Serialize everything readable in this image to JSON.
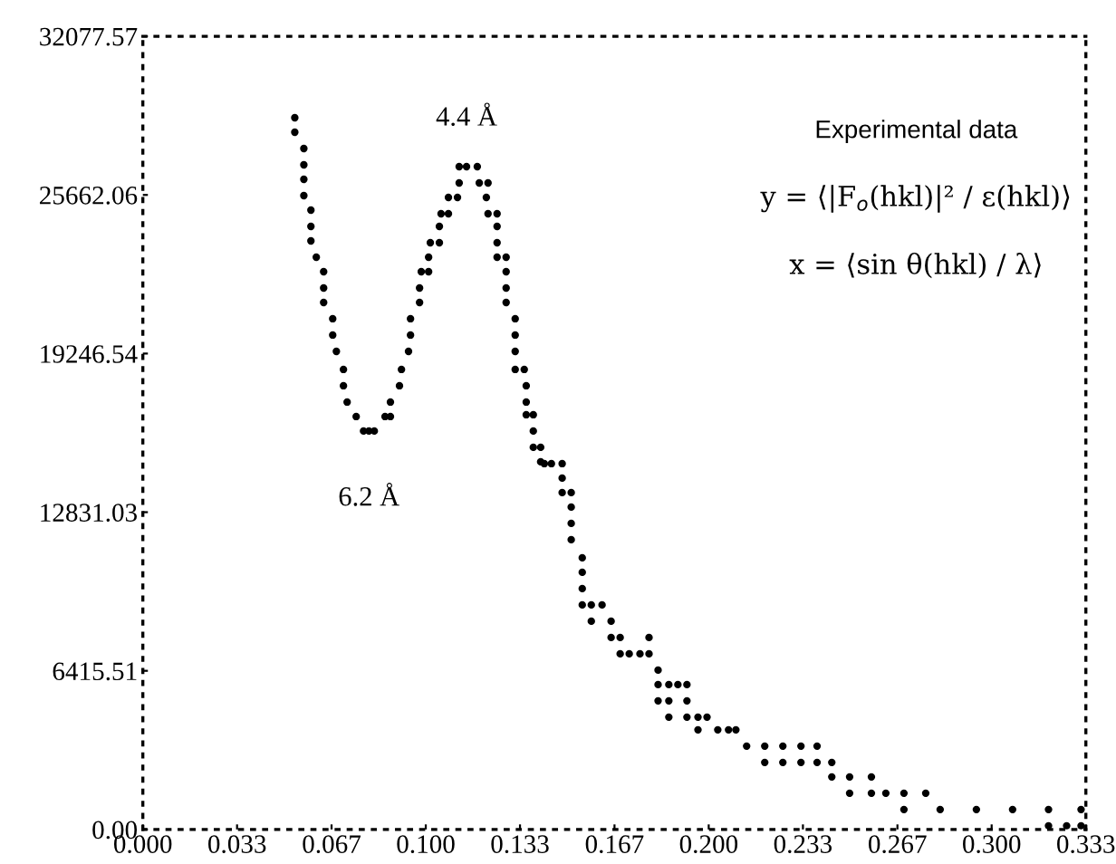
{
  "chart_data": {
    "type": "scatter",
    "marker": "circle",
    "grid": false,
    "legend": false,
    "xlim": [
      0,
      0.3333
    ],
    "ylim": [
      0,
      32077.57
    ],
    "xticks": [
      {
        "value": 0,
        "label": "0.000"
      },
      {
        "value": 0.0333,
        "label": "0.033"
      },
      {
        "value": 0.0667,
        "label": "0.067"
      },
      {
        "value": 0.1,
        "label": "0.100"
      },
      {
        "value": 0.1333,
        "label": "0.133"
      },
      {
        "value": 0.1667,
        "label": "0.167"
      },
      {
        "value": 0.2,
        "label": "0.200"
      },
      {
        "value": 0.2333,
        "label": "0.233"
      },
      {
        "value": 0.2667,
        "label": "0.267"
      },
      {
        "value": 0.3,
        "label": "0.300"
      },
      {
        "value": 0.3333,
        "label": "0.333"
      }
    ],
    "yticks": [
      {
        "value": 0,
        "label": "0.00"
      },
      6415.51,
      12831.03,
      19246.54,
      25662.06,
      32077.57
    ],
    "annotations": [
      {
        "text": "4.4 Å",
        "x": 0.1144,
        "y": 26806
      },
      {
        "text": "6.2 Å",
        "x": 0.0799,
        "y": 16113
      },
      "Experimental data",
      "y = ⟨|F$_{o}$(hkl)|² / ε(hkl)⟩",
      "x = ⟨sin θ(hkl) / λ⟩"
    ],
    "series": [
      {
        "color": "#000000",
        "x": [
          0.0537,
          0.0537,
          0.0569,
          0.0569,
          0.0569,
          0.0569,
          0.0594,
          0.0594,
          0.0594,
          0.0613,
          0.0639,
          0.0639,
          0.0639,
          0.0671,
          0.0671,
          0.0684,
          0.0709,
          0.0709,
          0.0722,
          0.0754,
          0.078,
          0.0799,
          0.0818,
          0.0856,
          0.0875,
          0.0875,
          0.0907,
          0.0914,
          0.0939,
          0.0946,
          0.0946,
          0.0978,
          0.0978,
          0.0984,
          0.101,
          0.101,
          0.1016,
          0.1048,
          0.1048,
          0.1054,
          0.108,
          0.108,
          0.1112,
          0.1118,
          0.1118,
          0.1144,
          0.1182,
          0.1189,
          0.122,
          0.1214,
          0.122,
          0.1252,
          0.1252,
          0.1252,
          0.1252,
          0.1284,
          0.1284,
          0.1284,
          0.1284,
          0.1316,
          0.1316,
          0.1316,
          0.1316,
          0.1348,
          0.1355,
          0.1355,
          0.1355,
          0.138,
          0.138,
          0.138,
          0.1406,
          0.1406,
          0.1419,
          0.1444,
          0.1482,
          0.1482,
          0.1482,
          0.1514,
          0.1514,
          0.1514,
          0.1514,
          0.1553,
          0.1553,
          0.1553,
          0.1553,
          0.1585,
          0.1623,
          0.1585,
          0.1655,
          0.1655,
          0.1687,
          0.1789,
          0.1687,
          0.1719,
          0.1757,
          0.1789,
          0.1821,
          0.1821,
          0.1859,
          0.1891,
          0.1923,
          0.1821,
          0.1859,
          0.1923,
          0.1859,
          0.1923,
          0.1962,
          0.1994,
          0.1962,
          0.2032,
          0.207,
          0.2096,
          0.2134,
          0.2198,
          0.2262,
          0.2326,
          0.2383,
          0.2198,
          0.2262,
          0.2326,
          0.2383,
          0.2435,
          0.2435,
          0.2498,
          0.2575,
          0.2498,
          0.2575,
          0.2626,
          0.269,
          0.2767,
          0.269,
          0.2818,
          0.2946,
          0.3074,
          0.3201,
          0.3316,
          0.3201,
          0.3265,
          0.3316
        ],
        "values": [
          28783,
          28197,
          27538,
          26879,
          26293,
          25634,
          25048,
          24389,
          23803,
          23144,
          22558,
          21899,
          21313,
          20654,
          19995,
          19335,
          18603,
          17944,
          17285,
          16699,
          16113,
          16113,
          16113,
          16699,
          16699,
          17285,
          17944,
          18603,
          19335,
          19995,
          20654,
          21313,
          21899,
          22558,
          22558,
          23144,
          23730,
          23730,
          24389,
          24902,
          24902,
          25561,
          25561,
          26147,
          26806,
          26806,
          26806,
          26147,
          26147,
          25561,
          24902,
          24902,
          24389,
          23730,
          23144,
          23144,
          22558,
          21899,
          21313,
          20654,
          19995,
          19335,
          18603,
          18603,
          17944,
          17285,
          16772,
          16772,
          16113,
          15454,
          15454,
          14868,
          14794,
          14794,
          14794,
          14209,
          13623,
          13623,
          13037,
          12378,
          11718,
          10986,
          10400,
          9741,
          9082,
          9082,
          9082,
          8423,
          8423,
          7763,
          7763,
          7763,
          7104,
          7104,
          7104,
          7104,
          6445,
          5859,
          5859,
          5859,
          5859,
          5200,
          5200,
          5200,
          4541,
          4541,
          4541,
          4541,
          4028,
          4028,
          4028,
          4028,
          3369,
          3369,
          3369,
          3369,
          3369,
          2710,
          2710,
          2710,
          2710,
          2710,
          2124,
          2124,
          2124,
          1465,
          1465,
          1465,
          1465,
          1465,
          806,
          806,
          806,
          806,
          806,
          806,
          146,
          146,
          146
        ]
      }
    ]
  }
}
